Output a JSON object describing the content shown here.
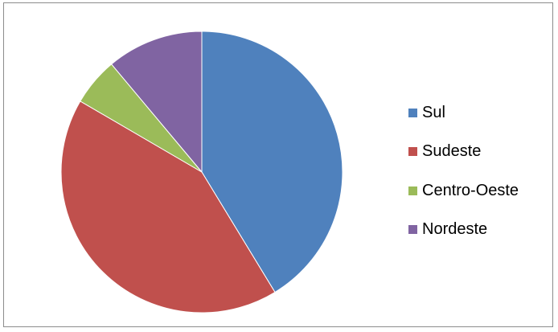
{
  "chart_data": {
    "type": "pie",
    "categories": [
      "Sul",
      "Sudeste",
      "Centro-Oeste",
      "Nordeste"
    ],
    "values": [
      41.3,
      42.1,
      5.5,
      11.1
    ],
    "colors": [
      "#4f81bd",
      "#c0504d",
      "#9bbb59",
      "#8064a2"
    ],
    "start_angle_deg": 0,
    "direction": "clockwise",
    "legend_position": "right"
  }
}
